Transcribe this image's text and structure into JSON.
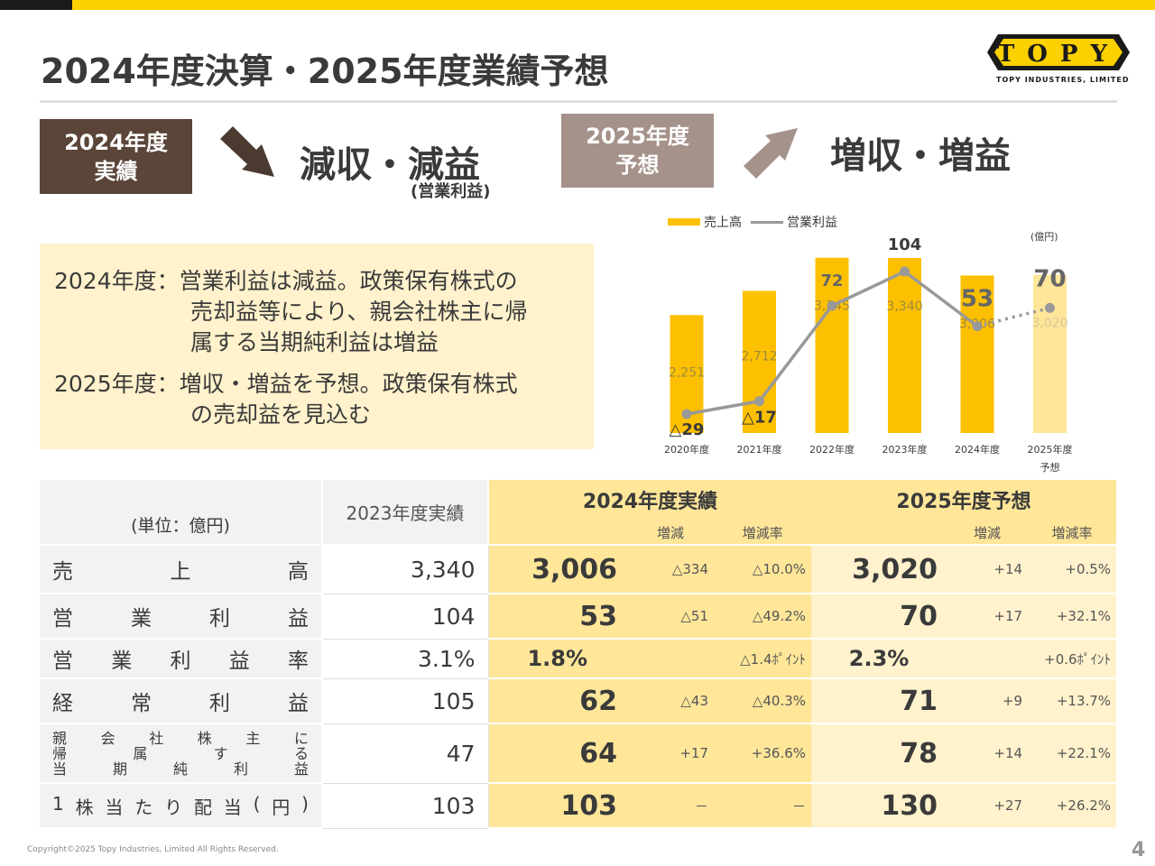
{
  "title": "2024年度決算・2025年度業績予想",
  "logo": {
    "mark": "TOPY",
    "subtitle": "TOPY INDUSTRIES, LIMITED",
    "colors": {
      "yellow": "#fdd000",
      "black": "#1a1a1a"
    }
  },
  "badge_2024": {
    "line1": "2024年度",
    "line2": "実績"
  },
  "headline_2024": "減収・減益",
  "headline_2024_note": "(営業利益)",
  "badge_2025": {
    "line1": "2025年度",
    "line2": "予想"
  },
  "headline_2025": "増収・増益",
  "summary": {
    "l1": "2024年度：営業利益は減益。政策保有株式の",
    "l2": "売却益等により、親会社株主に帰",
    "l3": "属する当期純利益は増益",
    "l4": "2025年度：増収・増益を予想。政策保有株式",
    "l5": "の売却益を見込む"
  },
  "chart_data": {
    "type": "bar",
    "unit": "(億円)",
    "categories": [
      "2020年度",
      "2021年度",
      "2022年度",
      "2023年度",
      "2024年度",
      "2025年度"
    ],
    "category_sub": [
      "",
      "",
      "",
      "",
      "",
      "予想"
    ],
    "series": [
      {
        "name": "売上高",
        "type": "bar",
        "values": [
          2251,
          2712,
          3345,
          3340,
          3006,
          3020
        ],
        "labels": [
          "2,251",
          "2,712",
          "3,345",
          "3,340",
          "3,006",
          "3,020"
        ],
        "color": "#fdc000",
        "forecast_color": "#ffe699"
      },
      {
        "name": "営業利益",
        "type": "line",
        "values": [
          -29,
          -17,
          72,
          104,
          53,
          70
        ],
        "labels": [
          "△29",
          "△17",
          "72",
          "104",
          "53",
          "70"
        ],
        "color": "#999999"
      }
    ],
    "forecast_index": 5
  },
  "table": {
    "unit_label": "(単位：億円)",
    "col_2023": "2023年度実績",
    "col_2024": "2024年度実績",
    "col_2025": "2025年度予想",
    "sub_change": "増減",
    "sub_rate": "増減率",
    "rows": [
      {
        "label": [
          "売",
          "上",
          "高"
        ],
        "v2023": "3,340",
        "v2024": "3,006",
        "d2024": "△334",
        "r2024": "△10.0%",
        "v2025": "3,020",
        "d2025": "+14",
        "r2025": "+0.5%"
      },
      {
        "label": [
          "営",
          "業",
          "利",
          "益"
        ],
        "v2023": "104",
        "v2024": "53",
        "d2024": "△51",
        "r2024": "△49.2%",
        "v2025": "70",
        "d2025": "+17",
        "r2025": "+32.1%"
      },
      {
        "label": [
          "営",
          "業",
          "利",
          "益",
          "率"
        ],
        "v2023": "3.1%",
        "v2024": "1.8%",
        "d2024": "",
        "r2024": "△1.4ﾎﾟｲﾝﾄ",
        "v2025": "2.3%",
        "d2025": "",
        "r2025": "+0.6ﾎﾟｲﾝﾄ"
      },
      {
        "label": [
          "経",
          "常",
          "利",
          "益"
        ],
        "v2023": "105",
        "v2024": "62",
        "d2024": "△43",
        "r2024": "△40.3%",
        "v2025": "71",
        "d2025": "+9",
        "r2025": "+13.7%"
      },
      {
        "label_lines": [
          [
            "親",
            "会",
            "社",
            "株",
            "主",
            "に"
          ],
          [
            "帰",
            "属",
            "す",
            "る"
          ],
          [
            "当",
            "期",
            "純",
            "利",
            "益"
          ]
        ],
        "v2023": "47",
        "v2024": "64",
        "d2024": "+17",
        "r2024": "+36.6%",
        "v2025": "78",
        "d2025": "+14",
        "r2025": "+22.1%"
      },
      {
        "label": [
          "1",
          "株",
          "当",
          "た",
          "り",
          "配",
          "当",
          "(",
          "円",
          ")"
        ],
        "v2023": "103",
        "v2024": "103",
        "d2024": "－",
        "r2024": "－",
        "v2025": "130",
        "d2025": "+27",
        "r2025": "+26.2%"
      }
    ]
  },
  "footer": "Copyright©2025 Topy Industries, Limited All Rights Reserved.",
  "page_number": "4"
}
